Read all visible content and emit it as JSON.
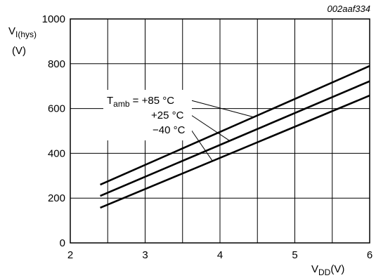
{
  "figure_code": "002aaf334",
  "chart_data": {
    "type": "line",
    "title": "",
    "xlabel_main": "V",
    "xlabel_sub": "DD",
    "xlabel_unit": "(V)",
    "ylabel_main": "V",
    "ylabel_sub": "I(hys)",
    "ylabel_unit": "(V)",
    "xlim": [
      2,
      6
    ],
    "ylim": [
      0,
      1000
    ],
    "x_ticks": [
      2,
      3,
      4,
      5,
      6
    ],
    "y_ticks": [
      0,
      200,
      400,
      600,
      800,
      1000
    ],
    "grid": true,
    "legend_prefix_main": "T",
    "legend_prefix_sub": "amb",
    "legend_prefix_eq": " = ",
    "series": [
      {
        "name": "+85 °C",
        "x": [
          2.4,
          6.0
        ],
        "y": [
          260,
          790
        ]
      },
      {
        "name": "+25 °C",
        "x": [
          2.4,
          6.0
        ],
        "y": [
          210,
          722
        ]
      },
      {
        "name": "−40 °C",
        "x": [
          2.4,
          6.0
        ],
        "y": [
          157,
          658
        ]
      }
    ]
  }
}
